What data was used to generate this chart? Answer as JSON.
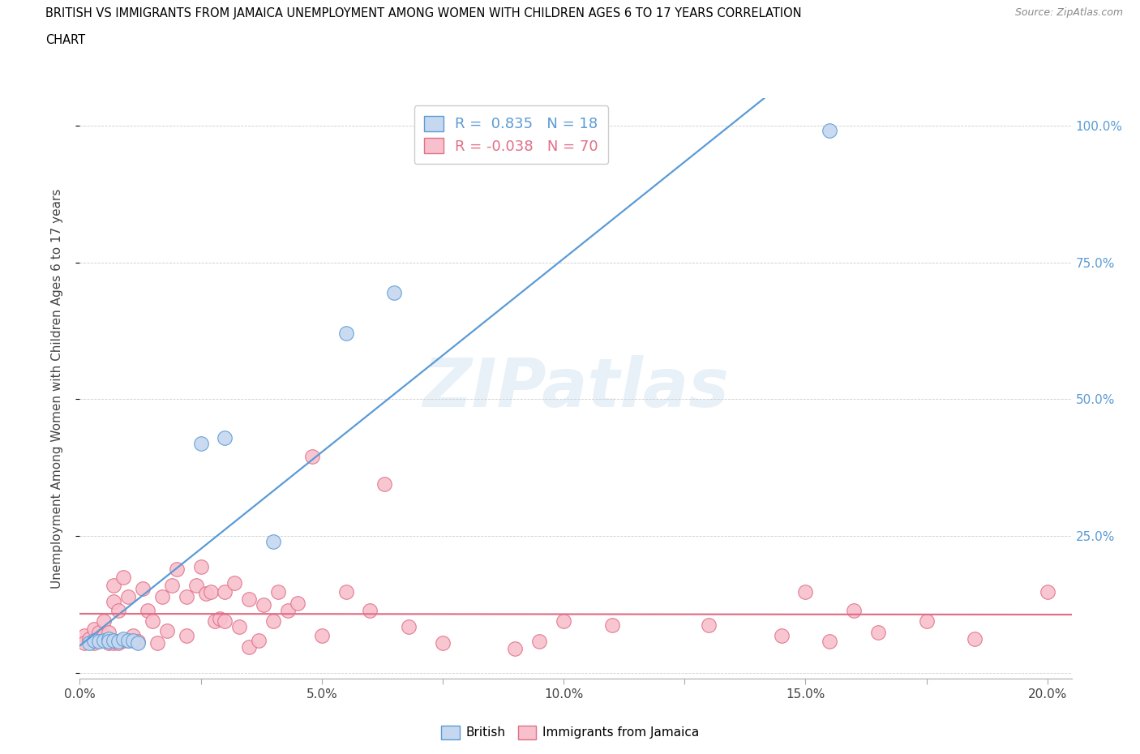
{
  "title_line1": "BRITISH VS IMMIGRANTS FROM JAMAICA UNEMPLOYMENT AMONG WOMEN WITH CHILDREN AGES 6 TO 17 YEARS CORRELATION",
  "title_line2": "CHART",
  "source": "Source: ZipAtlas.com",
  "ylabel": "Unemployment Among Women with Children Ages 6 to 17 years",
  "xlim": [
    0.0,
    0.205
  ],
  "ylim": [
    -0.01,
    1.05
  ],
  "xticks": [
    0.0,
    0.025,
    0.05,
    0.075,
    0.1,
    0.125,
    0.15,
    0.175,
    0.2
  ],
  "xticklabels": [
    "0.0%",
    "",
    "5.0%",
    "",
    "10.0%",
    "",
    "15.0%",
    "",
    "20.0%"
  ],
  "ytick_positions": [
    0.0,
    0.25,
    0.5,
    0.75,
    1.0
  ],
  "yticklabels_right": [
    "",
    "25.0%",
    "50.0%",
    "75.0%",
    "100.0%"
  ],
  "watermark": "ZIPatlas",
  "british_R": "0.835",
  "british_N": "18",
  "jamaica_R": "-0.038",
  "jamaica_N": "70",
  "british_face": "#c5d8f0",
  "british_edge": "#5b9bd5",
  "british_line": "#5b9bd5",
  "jamaica_face": "#f8c0cc",
  "jamaica_edge": "#e07088",
  "jamaica_line": "#e07088",
  "british_x": [
    0.002,
    0.003,
    0.004,
    0.005,
    0.006,
    0.006,
    0.007,
    0.008,
    0.009,
    0.01,
    0.011,
    0.012,
    0.025,
    0.03,
    0.04,
    0.055,
    0.065,
    0.155
  ],
  "british_y": [
    0.055,
    0.06,
    0.058,
    0.06,
    0.062,
    0.058,
    0.06,
    0.058,
    0.062,
    0.06,
    0.06,
    0.055,
    0.42,
    0.43,
    0.24,
    0.62,
    0.695,
    0.99
  ],
  "jamaica_x": [
    0.001,
    0.001,
    0.002,
    0.003,
    0.003,
    0.004,
    0.004,
    0.005,
    0.005,
    0.006,
    0.006,
    0.007,
    0.007,
    0.007,
    0.008,
    0.008,
    0.009,
    0.009,
    0.01,
    0.01,
    0.011,
    0.012,
    0.013,
    0.014,
    0.015,
    0.016,
    0.017,
    0.018,
    0.019,
    0.02,
    0.022,
    0.022,
    0.024,
    0.025,
    0.026,
    0.027,
    0.028,
    0.029,
    0.03,
    0.03,
    0.032,
    0.033,
    0.035,
    0.035,
    0.037,
    0.038,
    0.04,
    0.041,
    0.043,
    0.045,
    0.048,
    0.05,
    0.055,
    0.06,
    0.063,
    0.068,
    0.075,
    0.09,
    0.095,
    0.1,
    0.11,
    0.13,
    0.145,
    0.15,
    0.155,
    0.16,
    0.165,
    0.175,
    0.185,
    0.2
  ],
  "jamaica_y": [
    0.068,
    0.055,
    0.062,
    0.055,
    0.08,
    0.075,
    0.06,
    0.068,
    0.095,
    0.055,
    0.075,
    0.13,
    0.055,
    0.16,
    0.055,
    0.115,
    0.06,
    0.175,
    0.06,
    0.14,
    0.068,
    0.058,
    0.155,
    0.115,
    0.095,
    0.055,
    0.14,
    0.078,
    0.16,
    0.19,
    0.14,
    0.068,
    0.16,
    0.195,
    0.145,
    0.148,
    0.095,
    0.1,
    0.095,
    0.148,
    0.165,
    0.085,
    0.048,
    0.135,
    0.06,
    0.125,
    0.095,
    0.148,
    0.115,
    0.128,
    0.395,
    0.068,
    0.148,
    0.115,
    0.345,
    0.085,
    0.055,
    0.045,
    0.058,
    0.095,
    0.088,
    0.088,
    0.068,
    0.148,
    0.058,
    0.115,
    0.075,
    0.095,
    0.062,
    0.148
  ]
}
